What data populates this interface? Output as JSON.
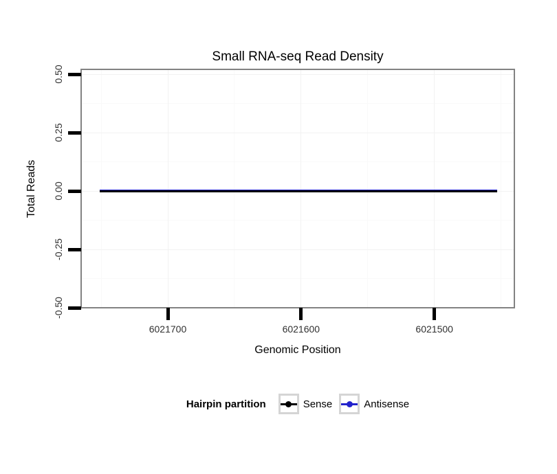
{
  "chart_data": {
    "type": "line",
    "title": "Small RNA-seq Read Density",
    "xlabel": "Genomic Position",
    "ylabel": "Total Reads",
    "x_axis": {
      "reversed": true,
      "domain": [
        6021765,
        6021440
      ],
      "ticks": [
        {
          "value": 6021700,
          "label": "6021700"
        },
        {
          "value": 6021600,
          "label": "6021600"
        },
        {
          "value": 6021500,
          "label": "6021500"
        }
      ],
      "minor_ticks": [
        6021750,
        6021650,
        6021550,
        6021450
      ]
    },
    "y_axis": {
      "min": -0.5,
      "max": 0.5,
      "ticks": [
        {
          "value": 0.5,
          "label": "0.50"
        },
        {
          "value": 0.25,
          "label": "0.25"
        },
        {
          "value": 0,
          "label": "0.00"
        },
        {
          "value": -0.25,
          "label": "-0.25"
        },
        {
          "value": -0.5,
          "label": "-0.50"
        }
      ],
      "minor_ticks": [
        0.375,
        0.125,
        -0.125,
        -0.375
      ]
    },
    "series": [
      {
        "name": "Sense",
        "color": "#000000",
        "x": [
          6021751,
          6021453
        ],
        "y": [
          0,
          0
        ]
      },
      {
        "name": "Antisense",
        "color": "#2222CC",
        "x": [
          6021751,
          6021453
        ],
        "y": [
          0,
          0
        ]
      }
    ],
    "legend": {
      "title": "Hairpin partition",
      "position": "bottom",
      "items": [
        {
          "label": "Sense",
          "color": "#000000"
        },
        {
          "label": "Antisense",
          "color": "#2222CC"
        }
      ]
    },
    "style": {
      "panel_bg": "#FFFFFF",
      "panel_border_color": "#828282",
      "grid_major_color": "#F2F2F2",
      "grid_minor_color": "#F9F9F9",
      "tick_color": "#000000",
      "axis_text_color": "#303030"
    }
  }
}
